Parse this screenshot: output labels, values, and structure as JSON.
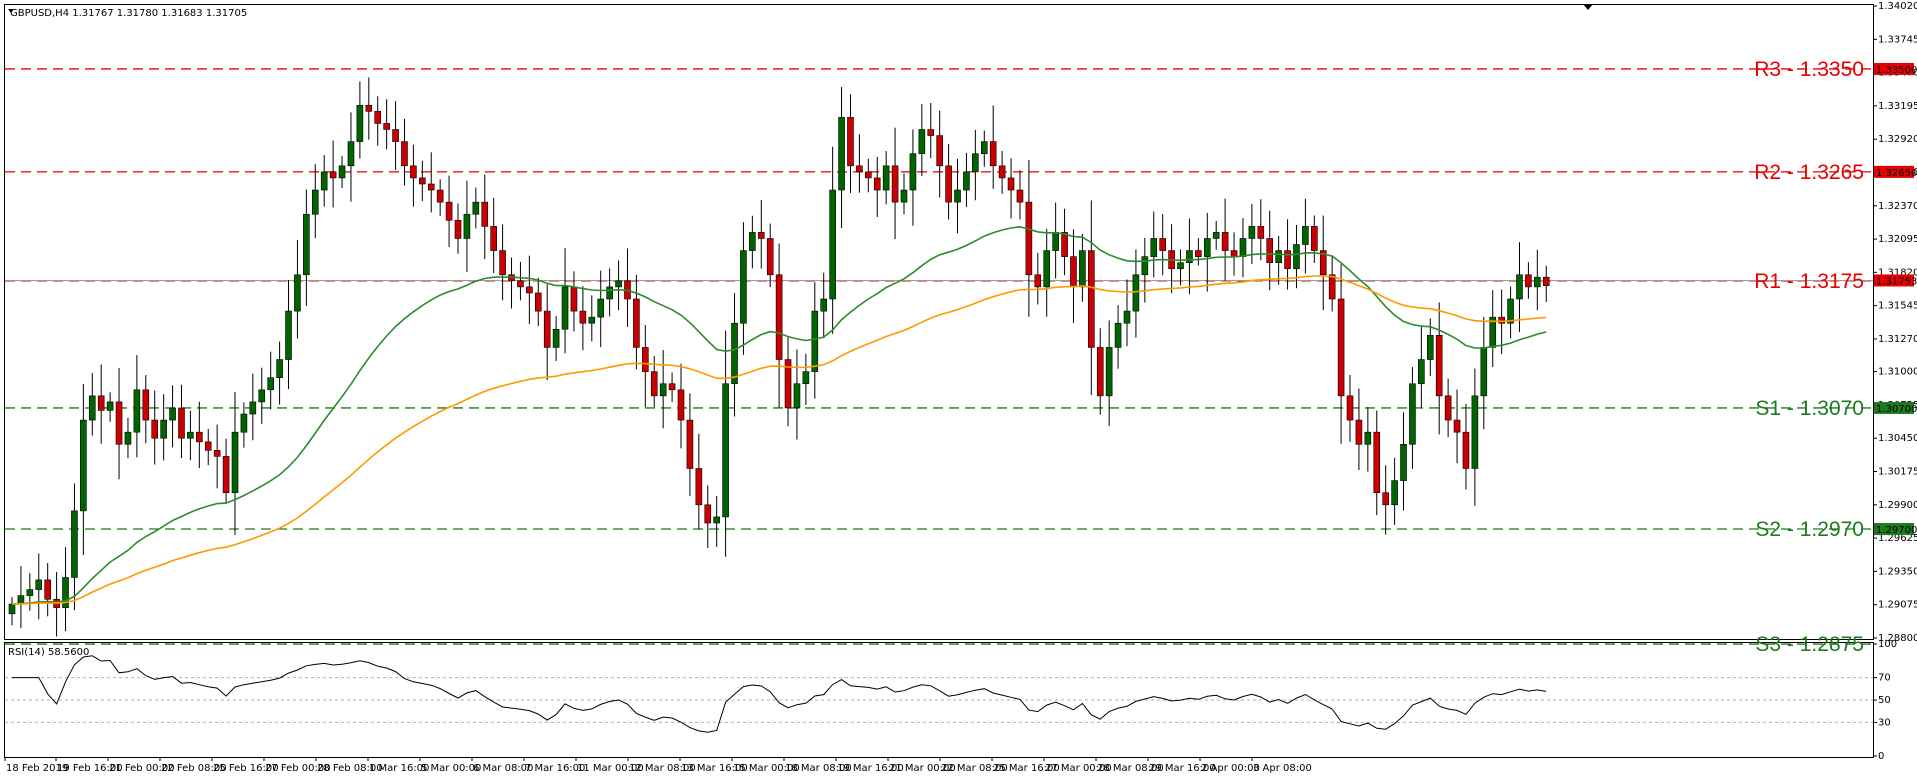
{
  "window": {
    "header": "GBPUSD,H4  1.31767 1.31780 1.31683 1.31705",
    "rsi_header": "RSI(14) 58.5600"
  },
  "colors": {
    "bull": "#006400",
    "bear": "#cc0000",
    "ma_fast": "#2e8b2e",
    "ma_slow": "#ff9900",
    "resistance": "#e60000",
    "support": "#1f7a1f",
    "current_price_tag": "#e60000"
  },
  "chart_data": {
    "type": "candlestick",
    "symbol": "GBPUSD",
    "timeframe": "H4",
    "last_bar": {
      "open": 1.31767,
      "high": 1.3178,
      "low": 1.31683,
      "close": 1.31705
    },
    "current_price": "1.31753",
    "current_price_value": 1.31753,
    "ylim": [
      1.288,
      1.3402
    ],
    "y_ticks": [
      "1.34020",
      "1.33745",
      "1.33470",
      "1.33195",
      "1.32920",
      "1.32650",
      "1.32370",
      "1.32095",
      "1.31820",
      "1.31545",
      "1.31270",
      "1.31000",
      "1.30725",
      "1.30450",
      "1.30175",
      "1.29900",
      "1.29625",
      "1.29350",
      "1.29075",
      "1.28800"
    ],
    "x_ticks": [
      "18 Feb 2019",
      "19 Feb 16:00",
      "21 Feb 00:00",
      "22 Feb 08:00",
      "25 Feb 16:00",
      "27 Feb 00:00",
      "28 Feb 08:00",
      "1 Mar 16:00",
      "5 Mar 00:00",
      "6 Mar 08:00",
      "7 Mar 16:00",
      "11 Mar 00:00",
      "12 Mar 08:00",
      "13 Mar 16:00",
      "15 Mar 00:00",
      "18 Mar 08:00",
      "19 Mar 16:00",
      "21 Mar 00:00",
      "22 Mar 08:00",
      "25 Mar 16:00",
      "27 Mar 00:00",
      "28 Mar 08:00",
      "29 Mar 16:00",
      "2 Apr 00:00",
      "3 Apr 08:00"
    ],
    "levels": [
      {
        "label": "R3 - 1.3350",
        "value": 1.335,
        "tag": "1.33500",
        "kind": "resistance"
      },
      {
        "label": "R2 - 1.3265",
        "value": 1.3265,
        "tag": "1.32650",
        "kind": "resistance"
      },
      {
        "label": "R1 - 1.3175",
        "value": 1.3175,
        "tag": "",
        "kind": "resistance"
      },
      {
        "label": "S1 - 1.3070",
        "value": 1.307,
        "tag": "1.30700",
        "kind": "support"
      },
      {
        "label": "S2 - 1.2970",
        "value": 1.297,
        "tag": "1.29700",
        "kind": "support"
      },
      {
        "label": "S3 - 1.2875",
        "value": 1.2875,
        "tag": "",
        "kind": "support"
      }
    ],
    "closes": [
      1.2908,
      1.2915,
      1.292,
      1.2928,
      1.2912,
      1.2905,
      1.293,
      1.2985,
      1.306,
      1.308,
      1.3068,
      1.3075,
      1.304,
      1.305,
      1.3085,
      1.306,
      1.3045,
      1.306,
      1.307,
      1.3045,
      1.305,
      1.3042,
      1.3035,
      1.303,
      1.3,
      1.305,
      1.3065,
      1.3075,
      1.3085,
      1.3095,
      1.311,
      1.315,
      1.318,
      1.323,
      1.325,
      1.3265,
      1.326,
      1.327,
      1.329,
      1.332,
      1.3315,
      1.3305,
      1.33,
      1.329,
      1.327,
      1.326,
      1.3255,
      1.325,
      1.324,
      1.3225,
      1.321,
      1.323,
      1.324,
      1.322,
      1.32,
      1.318,
      1.3175,
      1.317,
      1.3165,
      1.315,
      1.312,
      1.3135,
      1.317,
      1.315,
      1.314,
      1.3145,
      1.316,
      1.317,
      1.3175,
      1.316,
      1.312,
      1.31,
      1.308,
      1.309,
      1.3085,
      1.306,
      1.302,
      1.299,
      1.2975,
      1.298,
      1.309,
      1.314,
      1.32,
      1.3215,
      1.321,
      1.318,
      1.311,
      1.307,
      1.309,
      1.31,
      1.315,
      1.316,
      1.325,
      1.331,
      1.327,
      1.3265,
      1.326,
      1.325,
      1.327,
      1.324,
      1.325,
      1.328,
      1.33,
      1.3295,
      1.327,
      1.324,
      1.325,
      1.3265,
      1.328,
      1.329,
      1.327,
      1.326,
      1.325,
      1.324,
      1.318,
      1.317,
      1.32,
      1.3215,
      1.3195,
      1.317,
      1.32,
      1.312,
      1.308,
      1.312,
      1.314,
      1.315,
      1.318,
      1.3195,
      1.321,
      1.32,
      1.3185,
      1.319,
      1.32,
      1.3195,
      1.321,
      1.3215,
      1.32,
      1.3195,
      1.321,
      1.322,
      1.321,
      1.319,
      1.32,
      1.3185,
      1.3205,
      1.322,
      1.32,
      1.318,
      1.316,
      1.308,
      1.306,
      1.304,
      1.305,
      1.3,
      1.299,
      1.301,
      1.304,
      1.309,
      1.311,
      1.313,
      1.308,
      1.306,
      1.305,
      1.302,
      1.308,
      1.312,
      1.3145,
      1.314,
      1.316,
      1.318,
      1.317,
      1.3178,
      1.3171
    ]
  }
}
